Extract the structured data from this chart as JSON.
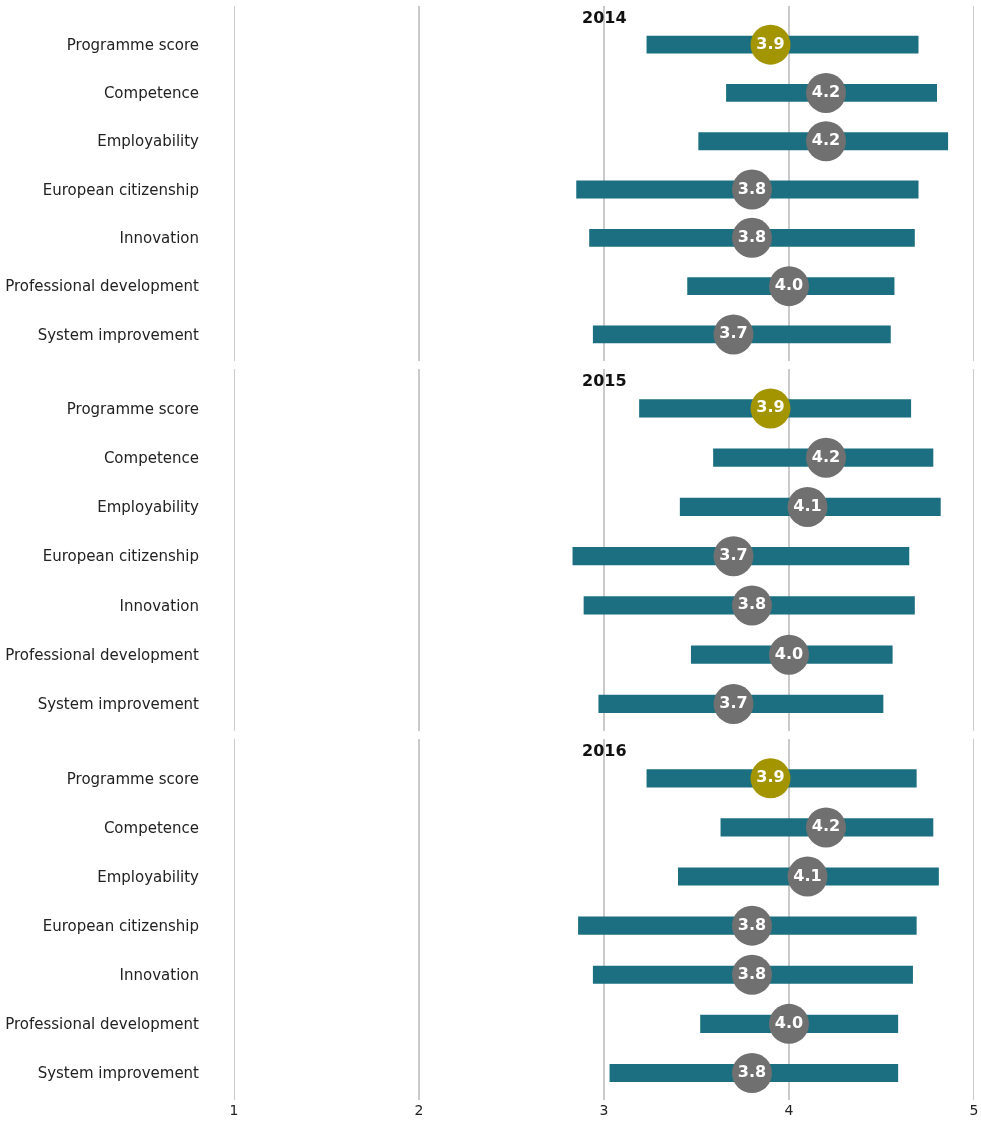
{
  "chart_data": [
    {
      "type": "bar",
      "orientation": "horizontal",
      "title": "2014",
      "categories": [
        "Programme score",
        "Competence",
        "Employability",
        "European citizenship",
        "Innovation",
        "Professional development",
        "System improvement"
      ],
      "xlim": [
        1,
        5
      ],
      "xticks": [
        1,
        2,
        3,
        4,
        5
      ],
      "grid": "x",
      "tick_labels": "y",
      "series": [
        {
          "type": "bar",
          "color": "#1b6f80",
          "base": [
            3.23,
            3.66,
            3.51,
            2.85,
            2.92,
            3.45,
            2.94
          ],
          "values": [
            1.47,
            1.14,
            1.35,
            1.85,
            1.76,
            1.12,
            1.61
          ]
        },
        {
          "type": "scatter",
          "marker": "circle",
          "colors": [
            "#a39500",
            "#707070",
            "#707070",
            "#707070",
            "#707070",
            "#707070",
            "#707070"
          ],
          "values": [
            3.9,
            4.2,
            4.2,
            3.8,
            3.8,
            4.0,
            3.7
          ],
          "value_labels": [
            "3.9",
            "4.2",
            "4.2",
            "3.8",
            "3.8",
            "4.0",
            "3.7"
          ]
        }
      ]
    },
    {
      "type": "bar",
      "orientation": "horizontal",
      "title": "2015",
      "categories": [
        "Programme score",
        "Competence",
        "Employability",
        "European citizenship",
        "Innovation",
        "Professional development",
        "System improvement"
      ],
      "xlim": [
        1,
        5
      ],
      "xticks": [
        1,
        2,
        3,
        4,
        5
      ],
      "grid": "x",
      "tick_labels": "y",
      "series": [
        {
          "type": "bar",
          "color": "#1b6f80",
          "base": [
            3.19,
            3.59,
            3.41,
            2.83,
            2.89,
            3.47,
            2.97
          ],
          "values": [
            1.47,
            1.19,
            1.41,
            1.82,
            1.79,
            1.09,
            1.54
          ]
        },
        {
          "type": "scatter",
          "marker": "circle",
          "colors": [
            "#a39500",
            "#707070",
            "#707070",
            "#707070",
            "#707070",
            "#707070",
            "#707070"
          ],
          "values": [
            3.9,
            4.2,
            4.1,
            3.7,
            3.8,
            4.0,
            3.7
          ],
          "value_labels": [
            "3.9",
            "4.2",
            "4.1",
            "3.7",
            "3.8",
            "4.0",
            "3.7"
          ]
        }
      ]
    },
    {
      "type": "bar",
      "orientation": "horizontal",
      "title": "2016",
      "categories": [
        "Programme score",
        "Competence",
        "Employability",
        "European citizenship",
        "Innovation",
        "Professional development",
        "System improvement"
      ],
      "xlim": [
        1,
        5
      ],
      "xticks": [
        1,
        2,
        3,
        4,
        5
      ],
      "grid": "x",
      "series": [
        {
          "type": "bar",
          "color": "#1b6f80",
          "base": [
            3.23,
            3.63,
            3.4,
            2.86,
            2.94,
            3.52,
            3.03
          ],
          "values": [
            1.46,
            1.15,
            1.41,
            1.83,
            1.73,
            1.07,
            1.56
          ]
        },
        {
          "type": "scatter",
          "marker": "circle",
          "colors": [
            "#a39500",
            "#707070",
            "#707070",
            "#707070",
            "#707070",
            "#707070",
            "#707070"
          ],
          "values": [
            3.9,
            4.2,
            4.1,
            3.8,
            3.8,
            4.0,
            3.8
          ],
          "value_labels": [
            "3.9",
            "4.2",
            "4.1",
            "3.8",
            "3.8",
            "4.0",
            "3.8"
          ]
        }
      ]
    }
  ]
}
